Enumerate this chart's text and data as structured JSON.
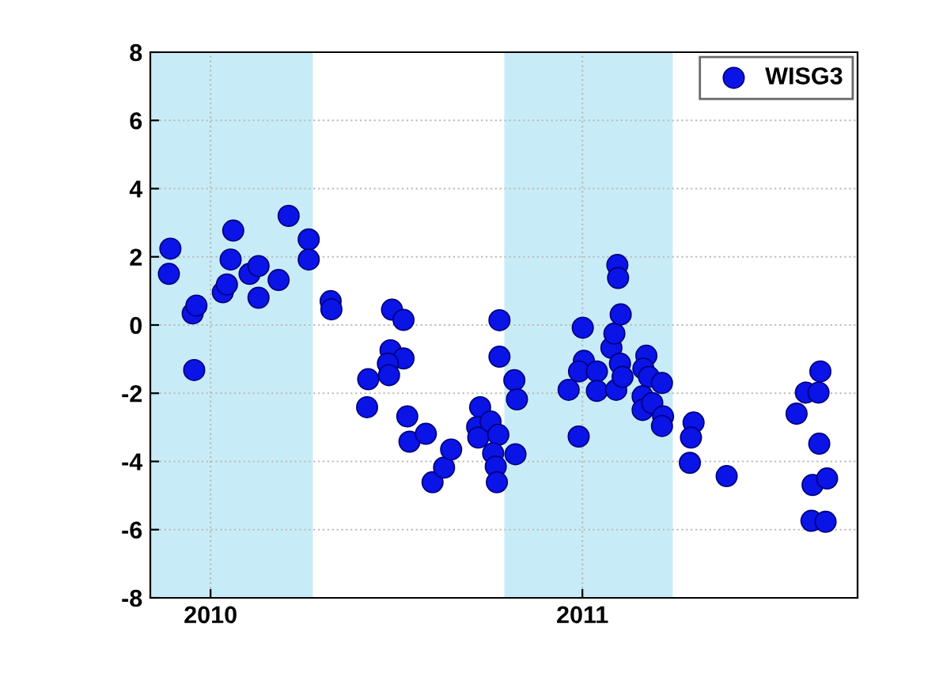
{
  "chart_data": {
    "type": "scatter",
    "legend": "top right",
    "grid": true,
    "marker": "circle",
    "xlim": [
      2009.838,
      2011.74
    ],
    "xticks": [
      2010,
      2011
    ],
    "ylim": [
      -8,
      8
    ],
    "yticks": [
      -8,
      -6,
      -4,
      -2,
      0,
      2,
      4,
      6,
      8
    ],
    "bands": [
      {
        "axis": "x",
        "from": 2009.838,
        "to": 2010.275,
        "color": "#c8ecf7"
      },
      {
        "axis": "x",
        "from": 2010.79,
        "to": 2011.243,
        "color": "#c8ecf7"
      }
    ],
    "series": [
      {
        "name": "WISG3",
        "color": "#0a14e6",
        "x": [
          2009.892,
          2009.888,
          2009.952,
          2009.962,
          2009.956,
          2010.033,
          2010.044,
          2010.054,
          2010.061,
          2010.105,
          2010.129,
          2010.129,
          2010.183,
          2010.21,
          2010.264,
          2010.264,
          2010.323,
          2010.325,
          2010.424,
          2010.421,
          2010.488,
          2010.519,
          2010.484,
          2010.519,
          2010.477,
          2010.48,
          2010.529,
          2010.535,
          2010.579,
          2010.597,
          2010.628,
          2010.647,
          2010.725,
          2010.717,
          2010.72,
          2010.753,
          2010.774,
          2010.76,
          2010.767,
          2010.77,
          2010.777,
          2010.777,
          2010.817,
          2010.824,
          2010.82,
          2011.001,
          2010.963,
          2010.99,
          2011.004,
          2010.991,
          2011.039,
          2011.039,
          2011.078,
          2011.086,
          2011.103,
          2011.094,
          2011.096,
          2011.101,
          2011.091,
          2011.108,
          2011.172,
          2011.164,
          2011.179,
          2011.162,
          2011.162,
          2011.188,
          2011.214,
          2011.217,
          2011.214,
          2011.299,
          2011.292,
          2011.289,
          2011.388,
          2011.576,
          2011.601,
          2011.635,
          2011.64,
          2011.637,
          2011.619,
          2011.658,
          2011.616,
          2011.654
        ],
        "values": [
          2.24,
          1.5,
          0.34,
          0.57,
          -1.32,
          0.96,
          1.19,
          1.92,
          2.77,
          1.5,
          1.73,
          0.8,
          1.32,
          3.2,
          2.51,
          1.92,
          0.7,
          0.46,
          -1.59,
          -2.41,
          0.45,
          0.15,
          -0.74,
          -0.98,
          -1.13,
          -1.47,
          -2.68,
          -3.42,
          -3.19,
          -4.61,
          -4.18,
          -3.65,
          -2.41,
          -2.99,
          -3.3,
          -2.83,
          -3.22,
          -3.76,
          -4.15,
          -4.61,
          0.14,
          -0.93,
          -1.62,
          -2.18,
          -3.79,
          -0.08,
          -1.9,
          -3.27,
          -1.05,
          -1.36,
          -1.36,
          -1.93,
          -0.67,
          -0.25,
          0.31,
          1.76,
          1.38,
          -1.13,
          -1.9,
          -1.52,
          -0.9,
          -1.28,
          -1.52,
          -2.09,
          -2.49,
          -2.29,
          -1.7,
          -2.68,
          -2.96,
          -2.86,
          -3.3,
          -4.04,
          -4.43,
          -2.6,
          -1.98,
          -1.98,
          -1.36,
          -3.48,
          -4.69,
          -4.5,
          -5.74,
          -5.77
        ]
      }
    ]
  }
}
